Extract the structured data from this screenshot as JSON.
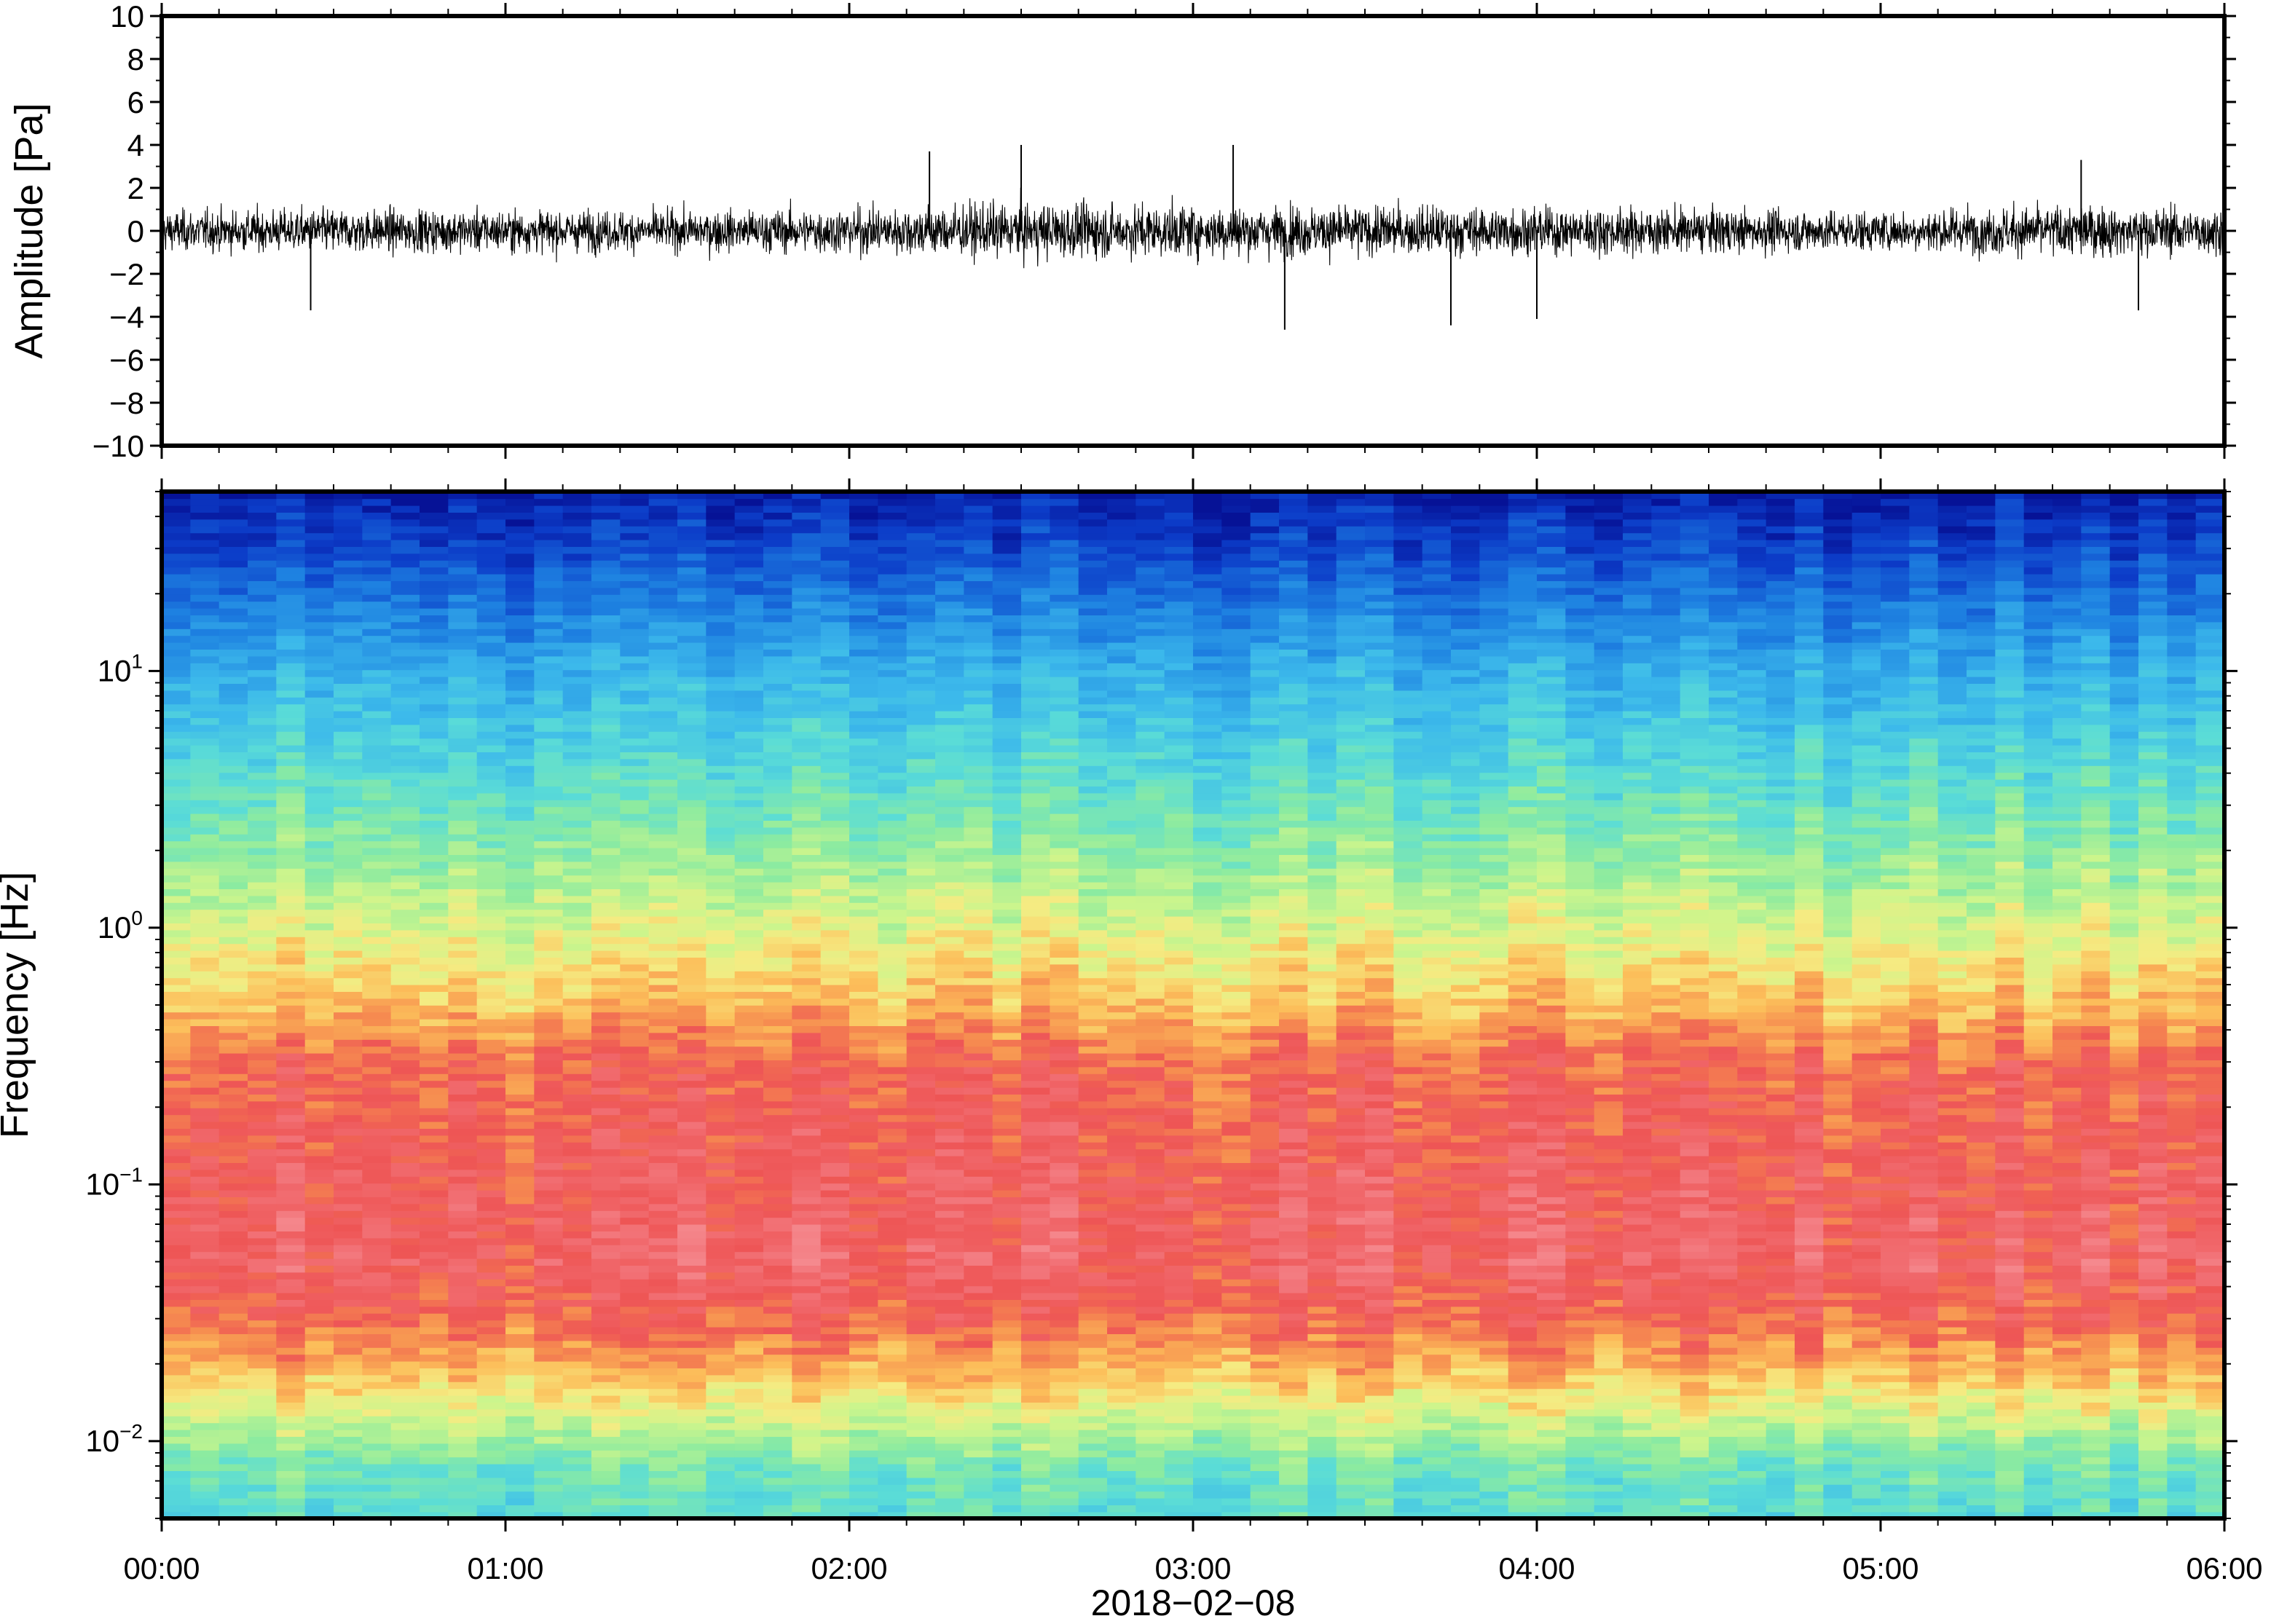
{
  "chart_data": [
    {
      "type": "line",
      "title": "",
      "xlabel": "",
      "ylabel": "Amplitude [Pa]",
      "ylim": [
        -10,
        10
      ],
      "xlim": [
        "00:00",
        "06:00"
      ],
      "y_ticks": [
        10,
        8,
        6,
        4,
        2,
        0,
        -2,
        -4,
        -6,
        -8,
        -10
      ],
      "y_tick_labels": [
        "10",
        "8",
        "6",
        "4",
        "2",
        "0",
        "−2",
        "−4",
        "−6",
        "−8",
        "−10"
      ],
      "grid": false,
      "series_color": "#000000",
      "noise_envelope": {
        "hours": [
          0,
          0.5,
          1,
          1.5,
          2,
          2.5,
          3,
          3.5,
          4,
          4.5,
          5,
          5.5,
          6
        ],
        "typical_peak_pa": [
          2.0,
          2.2,
          2.1,
          2.0,
          2.3,
          2.8,
          2.6,
          2.5,
          2.4,
          2.2,
          2.0,
          2.6,
          2.3
        ]
      },
      "peaks": [
        {
          "time": "00:26",
          "value": -3.7
        },
        {
          "time": "02:14",
          "value": 3.7
        },
        {
          "time": "02:30",
          "value": 4.0
        },
        {
          "time": "03:07",
          "value": 4.0
        },
        {
          "time": "03:16",
          "value": -4.6
        },
        {
          "time": "03:45",
          "value": -4.4
        },
        {
          "time": "04:00",
          "value": -4.1
        },
        {
          "time": "05:35",
          "value": 3.3
        },
        {
          "time": "05:45",
          "value": -3.7
        }
      ]
    },
    {
      "type": "heatmap",
      "title": "",
      "xlabel": "2018−02−08",
      "ylabel": "Frequency [Hz]",
      "y_scale": "log",
      "ylim": [
        0.005,
        50
      ],
      "xlim": [
        "00:00",
        "06:00"
      ],
      "x_tick_labels": [
        "00:00",
        "01:00",
        "02:00",
        "03:00",
        "04:00",
        "05:00",
        "06:00"
      ],
      "y_ticks": [
        {
          "value": 10,
          "base": "10",
          "exp": "1"
        },
        {
          "value": 1,
          "base": "10",
          "exp": "0"
        },
        {
          "value": 0.1,
          "base": "10",
          "exp": "−1"
        },
        {
          "value": 0.01,
          "base": "10",
          "exp": "−2"
        }
      ],
      "colormap": "rainbow",
      "time_bins": 72,
      "frequency_profile": {
        "frequency_hz": [
          50,
          30,
          10,
          3,
          1,
          0.5,
          0.3,
          0.1,
          0.05,
          0.03,
          0.02,
          0.012,
          0.008,
          0.005
        ],
        "relative_level": [
          0.02,
          0.1,
          0.3,
          0.45,
          0.6,
          0.7,
          0.8,
          0.84,
          0.86,
          0.8,
          0.72,
          0.58,
          0.46,
          0.42
        ]
      }
    }
  ]
}
